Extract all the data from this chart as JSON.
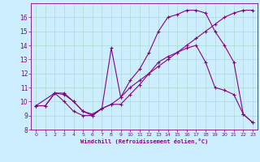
{
  "xlabel": "Windchill (Refroidissement éolien,°C)",
  "bg_color": "#cceeff",
  "grid_color": "#aaddcc",
  "line_color": "#880088",
  "xlim": [
    -0.5,
    23.5
  ],
  "ylim": [
    8,
    17
  ],
  "xticks": [
    0,
    1,
    2,
    3,
    4,
    5,
    6,
    7,
    8,
    9,
    10,
    11,
    12,
    13,
    14,
    15,
    16,
    17,
    18,
    19,
    20,
    21,
    22,
    23
  ],
  "yticks": [
    8,
    9,
    10,
    11,
    12,
    13,
    14,
    15,
    16
  ],
  "line1_x": [
    0,
    1,
    2,
    3,
    4,
    5,
    6,
    7,
    8,
    9,
    10,
    11,
    12,
    13,
    14,
    15,
    16,
    17,
    18,
    19,
    20,
    21,
    22,
    23
  ],
  "line1_y": [
    9.7,
    9.7,
    10.6,
    10.6,
    10.0,
    9.3,
    9.1,
    9.5,
    9.8,
    9.8,
    10.5,
    11.2,
    12.0,
    12.8,
    13.2,
    13.5,
    13.8,
    14.0,
    12.8,
    11.0,
    10.8,
    10.5,
    9.1,
    8.5
  ],
  "line2_x": [
    0,
    2,
    3,
    4,
    5,
    6,
    7,
    8,
    9,
    10,
    11,
    12,
    13,
    14,
    15,
    16,
    17,
    18,
    19,
    20,
    21,
    22,
    23
  ],
  "line2_y": [
    9.7,
    10.6,
    10.5,
    10.0,
    9.3,
    9.0,
    9.5,
    13.8,
    10.3,
    11.5,
    12.3,
    13.5,
    15.0,
    16.0,
    16.2,
    16.5,
    16.5,
    16.3,
    15.0,
    14.0,
    12.8,
    9.1,
    8.5
  ],
  "line3_x": [
    0,
    1,
    2,
    3,
    4,
    5,
    6,
    7,
    8,
    9,
    10,
    11,
    12,
    13,
    14,
    15,
    16,
    17,
    18,
    19,
    20,
    21,
    22,
    23
  ],
  "line3_y": [
    9.7,
    9.7,
    10.6,
    10.0,
    9.3,
    9.0,
    9.0,
    9.5,
    9.8,
    10.3,
    11.0,
    11.5,
    12.0,
    12.5,
    13.0,
    13.5,
    14.0,
    14.5,
    15.0,
    15.5,
    16.0,
    16.3,
    16.5,
    16.5
  ]
}
